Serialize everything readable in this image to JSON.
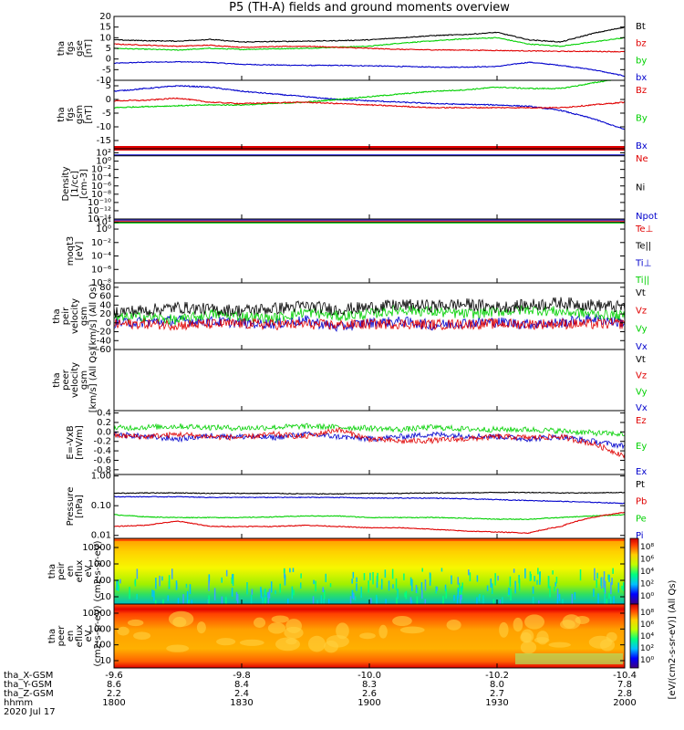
{
  "title": "P5 (TH-A) fields and ground moments overview",
  "date": "2020 Jul 17",
  "colors": {
    "black": "#000000",
    "red": "#e00000",
    "green": "#00d000",
    "blue": "#0000cc",
    "frame": "#000000"
  },
  "xaxis": {
    "ticks": [
      "-9.6",
      "-9.8",
      "-10.0",
      "-10.2",
      "-10.4"
    ],
    "rows": [
      {
        "label": "tha_X-GSM",
        "values": [
          "-9.6",
          "-9.8",
          "-10.0",
          "-10.2",
          "-10.4"
        ]
      },
      {
        "label": "tha_Y-GSM",
        "values": [
          "8.6",
          "8.4",
          "8.3",
          "8.0",
          "7.8"
        ]
      },
      {
        "label": "tha_Z-GSM",
        "values": [
          "2.2",
          "2.4",
          "2.6",
          "2.7",
          "2.8"
        ]
      },
      {
        "label": "hhmm",
        "values": [
          "1800",
          "1830",
          "1900",
          "1930",
          "2000"
        ]
      }
    ]
  },
  "colorbar": {
    "ticks1": [
      "10⁸",
      "10⁶",
      "10⁴",
      "10²",
      "10⁰"
    ],
    "ticks2": [
      "10⁸",
      "10⁶",
      "10⁴",
      "10²",
      "10⁰"
    ],
    "label": "[eV/(cm2-s-sr-eV)] (All Qs)"
  },
  "chart_data": [
    {
      "type": "line",
      "id": "fgs_gse",
      "ylabel": [
        "tha",
        "fgs",
        "gse",
        "[nT]"
      ],
      "ylim": [
        -10,
        20
      ],
      "yticks": [
        "20",
        "15",
        "10",
        "5",
        "0",
        "-5",
        "-10"
      ],
      "ytickvals": [
        20,
        15,
        10,
        5,
        0,
        -5,
        -10
      ],
      "series": [
        {
          "name": "Bt",
          "color": "black",
          "values": [
            9,
            8.6,
            8.4,
            9.2,
            8,
            8.2,
            8.4,
            8.6,
            9,
            10,
            11,
            11.5,
            12.5,
            9,
            8,
            12,
            15
          ]
        },
        {
          "name": "bz",
          "color": "red",
          "values": [
            7,
            6.5,
            6,
            6.5,
            5.5,
            5.8,
            6,
            5.5,
            5,
            4.5,
            4.3,
            4.2,
            4,
            3.8,
            3.6,
            3.6,
            3.4
          ]
        },
        {
          "name": "by",
          "color": "green",
          "values": [
            5,
            4.6,
            4.2,
            5,
            4.5,
            4.8,
            5,
            5.6,
            6,
            7.5,
            8.5,
            9.5,
            10,
            7,
            6,
            8,
            10
          ]
        },
        {
          "name": "bx",
          "color": "blue",
          "values": [
            -2,
            -1.5,
            -1.3,
            -1.6,
            -2.5,
            -2.8,
            -3,
            -3,
            -3.2,
            -3.5,
            -3.8,
            -3.8,
            -3.5,
            -1.5,
            -3,
            -5,
            -8
          ]
        }
      ]
    },
    {
      "type": "line",
      "id": "fgs_gsm",
      "ylabel": [
        "tha",
        "fgs",
        "gsm",
        "[nT]"
      ],
      "ylim": [
        -18,
        7
      ],
      "yticks": [
        "5",
        "0",
        "-5",
        "-10",
        "-15"
      ],
      "ytickvals": [
        5,
        0,
        -5,
        -10,
        -15
      ],
      "series": [
        {
          "name": "Bz",
          "color": "red",
          "values": [
            -0.5,
            -0.3,
            0.5,
            -1,
            -1.5,
            -1.2,
            -1,
            -1.5,
            -2,
            -2.5,
            -3,
            -3,
            -3,
            -3,
            -3,
            -2,
            -1
          ]
        },
        {
          "name": "By",
          "color": "green",
          "values": [
            -3,
            -2.6,
            -2.3,
            -2,
            -2,
            -1.5,
            -1,
            0,
            1,
            2,
            3,
            3.5,
            4.5,
            4,
            4,
            6,
            8
          ]
        },
        {
          "name": "Bx",
          "color": "blue",
          "values": [
            3,
            4,
            5,
            4.5,
            3,
            2,
            1,
            0,
            -0.5,
            -1,
            -1.5,
            -1.8,
            -2,
            -2.5,
            -4,
            -7,
            -11
          ]
        }
      ]
    },
    {
      "type": "line",
      "id": "density",
      "ylabel": [
        "Density",
        "[1/cc]",
        "[cm-3]"
      ],
      "logrange": [
        -14,
        3
      ],
      "yticks": [
        "10²",
        "10⁰",
        "10⁻²",
        "10⁻⁴",
        "10⁻⁶",
        "10⁻⁸",
        "10⁻¹⁰",
        "10⁻¹²",
        "10⁻¹⁴"
      ],
      "ytickvals": [
        2,
        0,
        -2,
        -4,
        -6,
        -8,
        -10,
        -12,
        -14
      ],
      "series": [
        {
          "name": "Ne",
          "color": "red"
        },
        {
          "name": "Ni",
          "color": "black"
        },
        {
          "name": "Npot",
          "color": "blue"
        }
      ]
    },
    {
      "type": "line",
      "id": "temperature",
      "ylabel": [
        "moqt3",
        "[eV]"
      ],
      "logrange": [
        -8,
        1.5
      ],
      "yticks": [
        "10¹",
        "10⁰",
        "10⁻²",
        "10⁻⁴",
        "10⁻⁶",
        "10⁻⁸"
      ],
      "ytickvals": [
        1,
        0,
        -2,
        -4,
        -6,
        -8
      ],
      "series": [
        {
          "name": "Te⊥",
          "color": "red"
        },
        {
          "name": "Te||",
          "color": "black"
        },
        {
          "name": "Ti⊥",
          "color": "blue"
        },
        {
          "name": "Ti||",
          "color": "green"
        }
      ]
    },
    {
      "type": "line",
      "id": "peir_vel",
      "ylabel": [
        "tha",
        "peir",
        "velocity",
        "gsm",
        "[km/s] (All Qs)"
      ],
      "ylim": [
        -60,
        90
      ],
      "yticks": [
        "80",
        "60",
        "40",
        "20",
        "0",
        "-20",
        "-40",
        "-60"
      ],
      "ytickvals": [
        80,
        60,
        40,
        20,
        0,
        -20,
        -40,
        -60
      ],
      "series": [
        {
          "name": "Vt",
          "color": "black",
          "values": [
            25,
            28,
            35,
            30,
            28,
            32,
            38,
            30,
            35,
            40,
            38,
            42,
            35,
            40,
            45,
            40,
            35
          ]
        },
        {
          "name": "Vz",
          "color": "red",
          "values": [
            -3,
            -2,
            -5,
            -3,
            -2,
            -4,
            -3,
            -5,
            -3,
            -2,
            -4,
            -3,
            -2,
            -3,
            -2,
            -3,
            -2
          ]
        },
        {
          "name": "Vy",
          "color": "green",
          "values": [
            10,
            15,
            5,
            20,
            15,
            10,
            25,
            15,
            20,
            30,
            25,
            20,
            25,
            30,
            25,
            20,
            15
          ]
        },
        {
          "name": "Vx",
          "color": "blue",
          "values": [
            0,
            2,
            5,
            3,
            0,
            -2,
            5,
            -10,
            0,
            3,
            -5,
            0,
            2,
            -3,
            0,
            10,
            0
          ]
        }
      ]
    },
    {
      "type": "line",
      "id": "peer_vel",
      "ylabel": [
        "tha",
        "peer",
        "velocity",
        "gsm",
        "[km/s] (All Qs)"
      ],
      "series": [
        {
          "name": "Vt",
          "color": "black"
        },
        {
          "name": "Vz",
          "color": "red"
        },
        {
          "name": "Vy",
          "color": "green"
        },
        {
          "name": "Vx",
          "color": "blue"
        }
      ]
    },
    {
      "type": "line",
      "id": "efield",
      "ylabel": [
        "E=-VxB",
        "[mV/m]"
      ],
      "ylim": [
        -0.9,
        0.45
      ],
      "yticks": [
        "0.4",
        "0.2",
        "0.0",
        "-0.2",
        "-0.4",
        "-0.6",
        "-0.8"
      ],
      "ytickvals": [
        0.4,
        0.2,
        0,
        -0.2,
        -0.4,
        -0.6,
        -0.8
      ],
      "series": [
        {
          "name": "Ez",
          "color": "red",
          "values": [
            -0.08,
            -0.1,
            -0.05,
            -0.1,
            -0.12,
            -0.05,
            -0.1,
            0.05,
            -0.15,
            -0.2,
            -0.18,
            -0.15,
            -0.1,
            -0.12,
            -0.1,
            -0.25,
            -0.5
          ]
        },
        {
          "name": "Ey",
          "color": "green",
          "values": [
            0.08,
            0.1,
            0.12,
            0.1,
            0.08,
            0.1,
            0.12,
            0.1,
            0.08,
            0.05,
            0.1,
            0.06,
            0.05,
            0.05,
            0.02,
            -0.02,
            -0.05
          ]
        },
        {
          "name": "Ex",
          "color": "blue",
          "values": [
            -0.05,
            -0.1,
            -0.15,
            -0.08,
            -0.1,
            -0.12,
            -0.05,
            -0.1,
            -0.15,
            -0.1,
            -0.05,
            -0.08,
            -0.1,
            -0.15,
            -0.1,
            -0.2,
            -0.3
          ]
        }
      ]
    },
    {
      "type": "line",
      "id": "pressure",
      "ylabel": [
        "Pressure",
        "[nPa]"
      ],
      "logrange": [
        -2.1,
        0.05
      ],
      "yticks": [
        "1.00",
        "0.10",
        "0.01"
      ],
      "ytickvals": [
        0,
        -1,
        -2
      ],
      "series": [
        {
          "name": "Pt",
          "color": "black",
          "values": [
            0.26,
            0.27,
            0.27,
            0.26,
            0.26,
            0.26,
            0.25,
            0.25,
            0.26,
            0.26,
            0.27,
            0.27,
            0.28,
            0.28,
            0.27,
            0.27,
            0.28
          ]
        },
        {
          "name": "Pb",
          "color": "red",
          "values": [
            0.02,
            0.022,
            0.03,
            0.02,
            0.02,
            0.02,
            0.022,
            0.02,
            0.018,
            0.018,
            0.016,
            0.014,
            0.013,
            0.012,
            0.02,
            0.04,
            0.06
          ]
        },
        {
          "name": "Pe",
          "color": "green",
          "values": [
            0.05,
            0.042,
            0.04,
            0.04,
            0.04,
            0.042,
            0.045,
            0.045,
            0.04,
            0.04,
            0.04,
            0.038,
            0.035,
            0.035,
            0.04,
            0.045,
            0.05
          ]
        },
        {
          "name": "Pi",
          "color": "blue",
          "values": [
            0.2,
            0.2,
            0.2,
            0.19,
            0.19,
            0.19,
            0.19,
            0.19,
            0.18,
            0.18,
            0.18,
            0.17,
            0.16,
            0.15,
            0.14,
            0.13,
            0.12
          ]
        }
      ]
    },
    {
      "type": "heatmap",
      "id": "peir_spec",
      "ylabel": [
        "tha",
        "peir",
        "en",
        "eflux",
        "eV",
        "(cm2-s-sr-eV)"
      ],
      "yticks": [
        "10000",
        "1000",
        "100",
        "10"
      ],
      "zrange": [
        "10⁰",
        "10⁸"
      ]
    },
    {
      "type": "heatmap",
      "id": "peer_spec",
      "ylabel": [
        "tha",
        "peer",
        "en",
        "eflux",
        "eV",
        "(cm2-s-sr-eV)"
      ],
      "yticks": [
        "10000",
        "1000",
        "100",
        "10"
      ],
      "zrange": [
        "10⁰",
        "10⁸"
      ]
    }
  ]
}
